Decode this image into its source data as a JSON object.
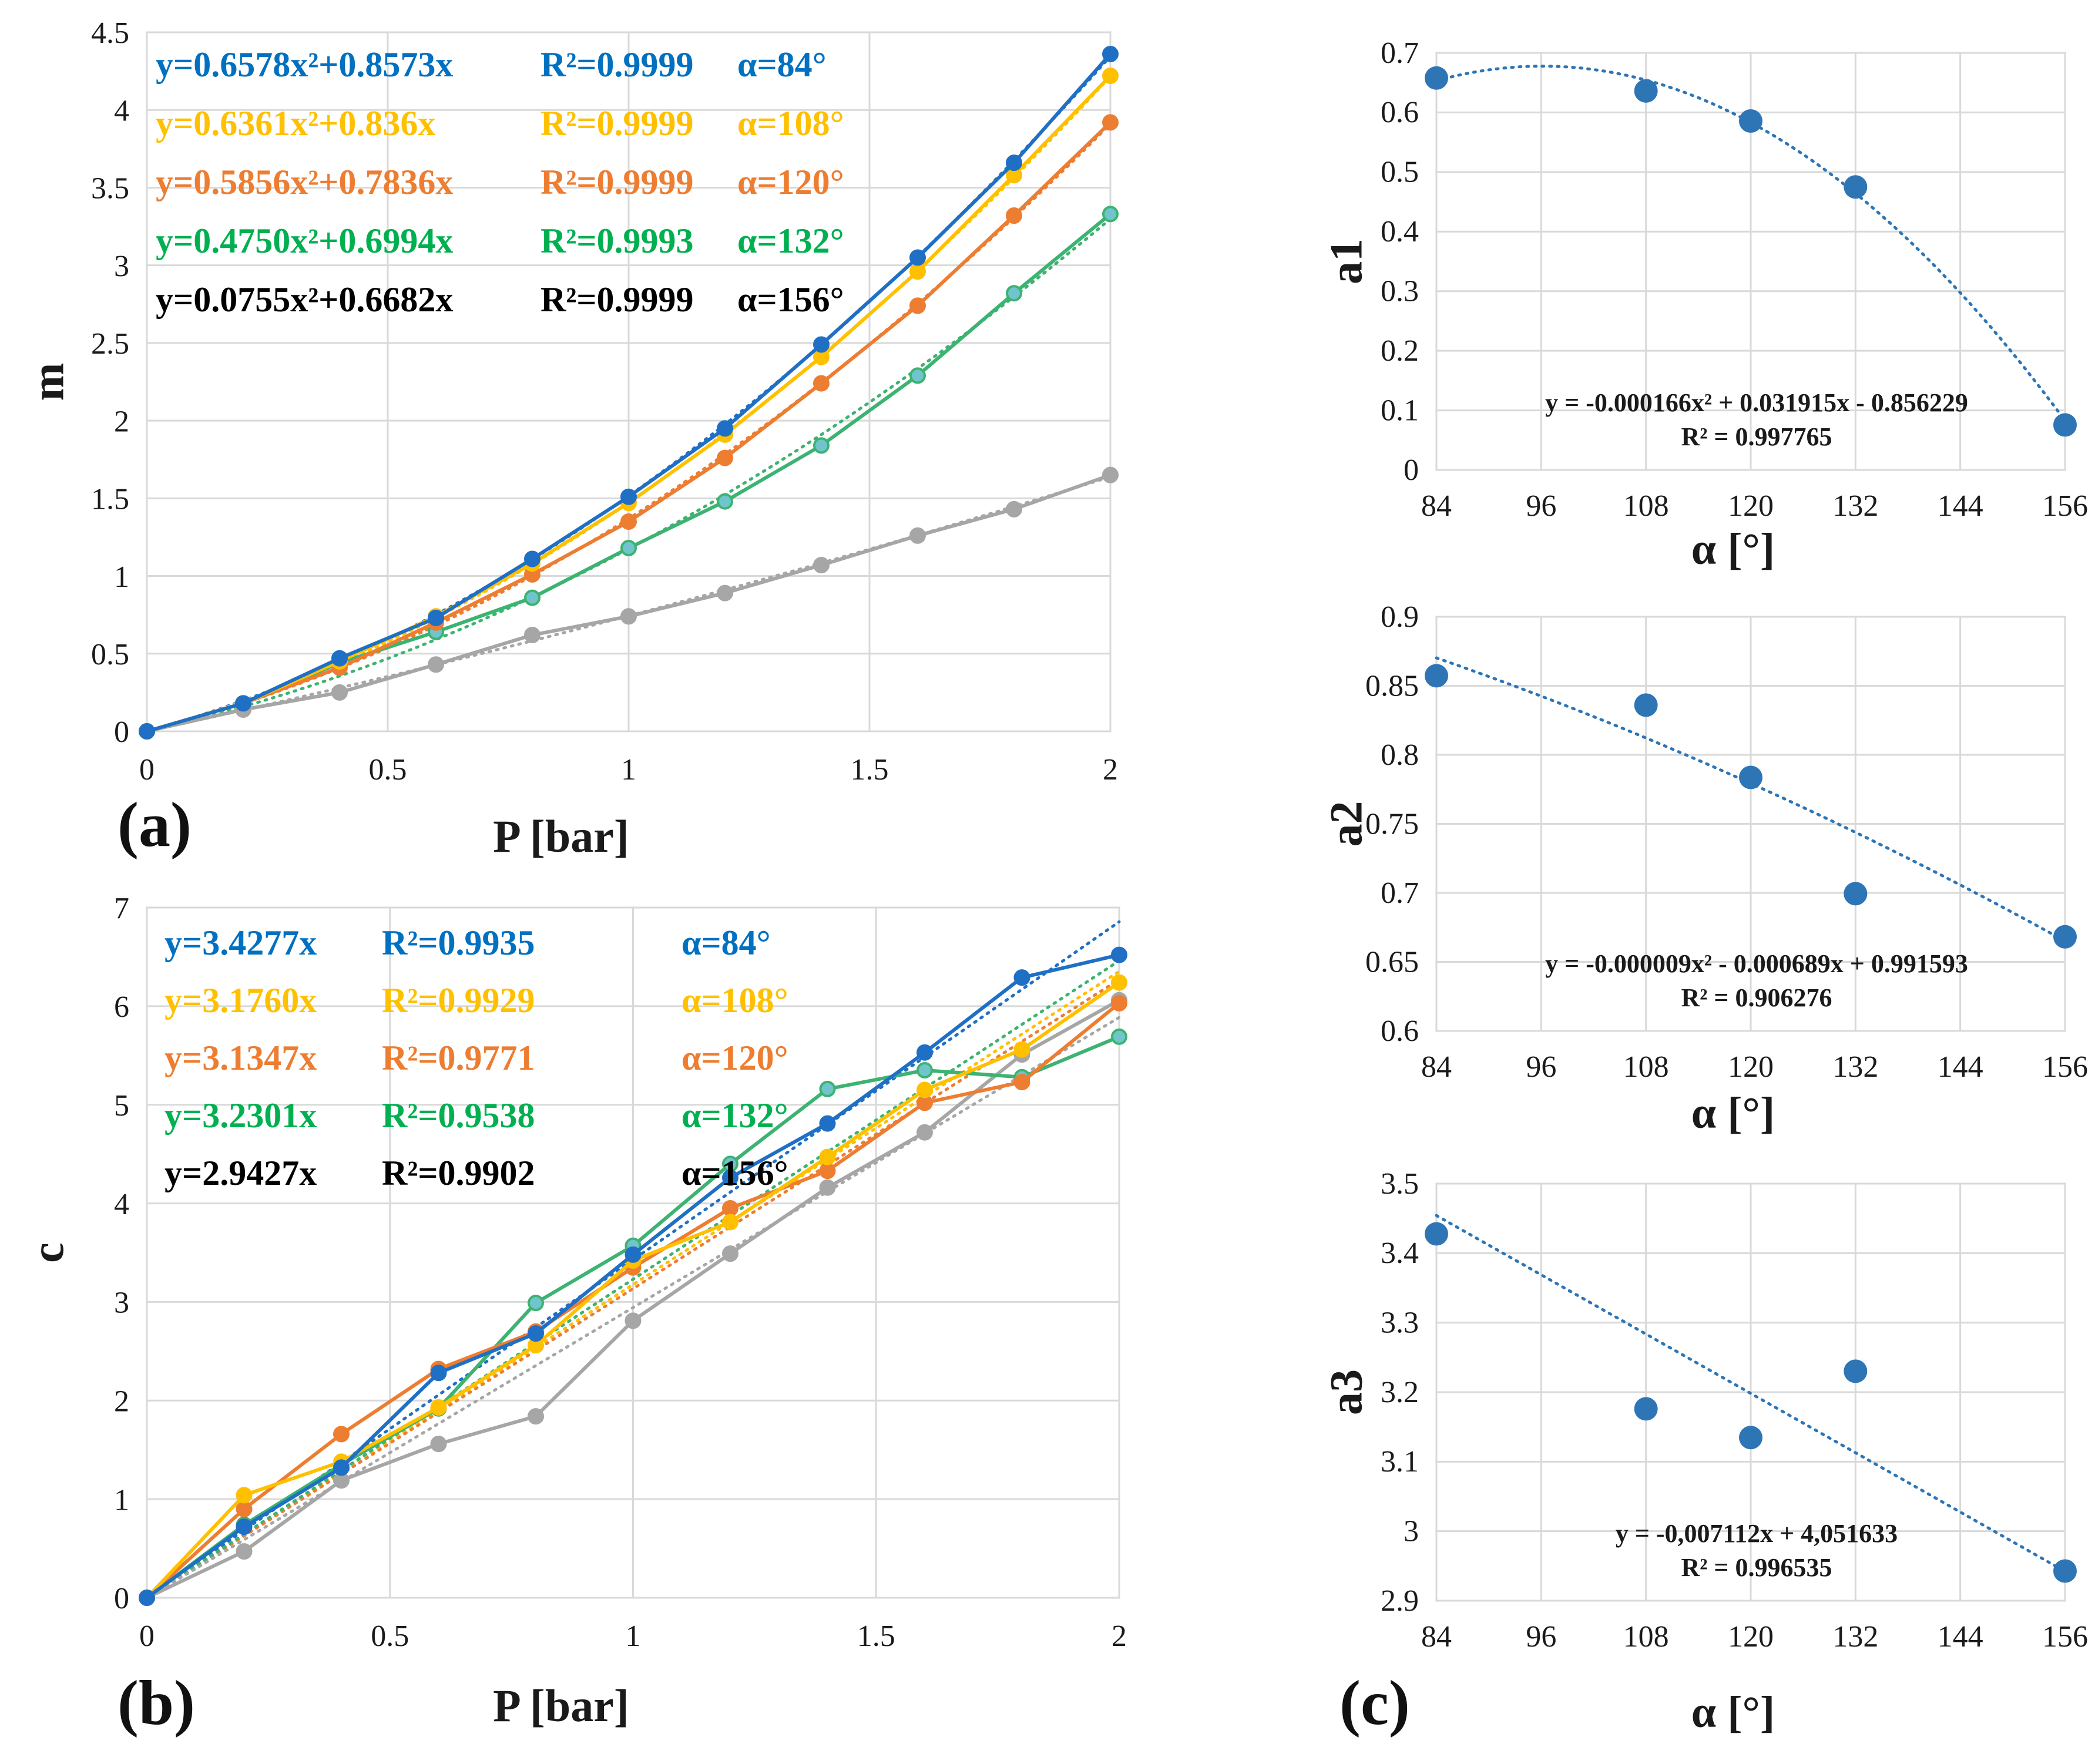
{
  "figure": {
    "labels": {
      "a": "(a)",
      "b": "(b)",
      "c": "(c)"
    }
  },
  "chart_data": [
    {
      "id": "a",
      "type": "line",
      "xlabel": "P [bar]",
      "ylabel": "m",
      "xlim": [
        0,
        2
      ],
      "xticks": [
        0,
        0.5,
        1,
        1.5,
        2
      ],
      "xtick_labels": [
        "0",
        "0.5",
        "1",
        "1.5",
        "2"
      ],
      "ylim": [
        0,
        4.5
      ],
      "yticks": [
        0,
        0.5,
        1,
        1.5,
        2,
        2.5,
        3,
        3.5,
        4,
        4.5
      ],
      "ytick_labels": [
        "0",
        "0.5",
        "1",
        "1.5",
        "2",
        "2.5",
        "3",
        "3.5",
        "4",
        "4.5"
      ],
      "grid": true,
      "x": [
        0,
        0.2,
        0.4,
        0.6,
        0.8,
        1.0,
        1.2,
        1.4,
        1.6,
        1.8,
        2.0
      ],
      "series": [
        {
          "name": "α=84°",
          "color": "#1f6fc5",
          "marker": "#1f6fc5",
          "values": [
            0,
            0.18,
            0.47,
            0.73,
            1.11,
            1.51,
            1.95,
            2.49,
            3.05,
            3.66,
            4.36
          ],
          "fit": [
            0.6578,
            0.8573
          ]
        },
        {
          "name": "α=108°",
          "color": "#ffc000",
          "marker": "#ffc000",
          "values": [
            0,
            0.18,
            0.45,
            0.74,
            1.08,
            1.47,
            1.91,
            2.41,
            2.96,
            3.58,
            4.22
          ],
          "fit": [
            0.6361,
            0.836
          ]
        },
        {
          "name": "α=120°",
          "color": "#ed7d31",
          "marker": "#ed7d31",
          "values": [
            0,
            0.18,
            0.41,
            0.7,
            1.01,
            1.35,
            1.76,
            2.24,
            2.74,
            3.32,
            3.92
          ],
          "fit": [
            0.5856,
            0.7836
          ]
        },
        {
          "name": "α=132°",
          "color": "#3cb371",
          "marker": "#70c4cc",
          "values": [
            0,
            0.18,
            0.44,
            0.64,
            0.86,
            1.18,
            1.48,
            1.84,
            2.29,
            2.82,
            3.33
          ],
          "fit": [
            0.475,
            0.6994
          ]
        },
        {
          "name": "α=156°",
          "color": "#a6a6a6",
          "marker": "#a6a6a6",
          "values": [
            0,
            0.14,
            0.25,
            0.43,
            0.62,
            0.74,
            0.89,
            1.07,
            1.26,
            1.43,
            1.65
          ],
          "fit": [
            0.0755,
            0.6682
          ]
        }
      ],
      "legend_placement": "top-left",
      "legend": [
        {
          "eq": "y=0.6578x²+0.8573x",
          "r2": "R²=0.9999",
          "alpha": "α=84°",
          "color": "#0070c0"
        },
        {
          "eq": "y=0.6361x²+0.836x",
          "r2": "R²=0.9999",
          "alpha": "α=108°",
          "color": "#ffc000"
        },
        {
          "eq": "y=0.5856x²+0.7836x",
          "r2": "R²=0.9999",
          "alpha": "α=120°",
          "color": "#ed7d31"
        },
        {
          "eq": "y=0.4750x²+0.6994x",
          "r2": "R²=0.9993",
          "alpha": "α=132°",
          "color": "#00b050"
        },
        {
          "eq": "y=0.0755x²+0.6682x",
          "r2": "R²=0.9999",
          "alpha": "α=156°",
          "color": "#000000"
        }
      ]
    },
    {
      "id": "b",
      "type": "line",
      "xlabel": "P [bar]",
      "ylabel": "c",
      "xlim": [
        0,
        2
      ],
      "xticks": [
        0,
        0.5,
        1,
        1.5,
        2
      ],
      "xtick_labels": [
        "0",
        "0.5",
        "1",
        "1.5",
        "2"
      ],
      "ylim": [
        0,
        7
      ],
      "yticks": [
        0,
        1,
        2,
        3,
        4,
        5,
        6,
        7
      ],
      "ytick_labels": [
        "0",
        "1",
        "2",
        "3",
        "4",
        "5",
        "6",
        "7"
      ],
      "grid": true,
      "x": [
        0,
        0.2,
        0.4,
        0.6,
        0.8,
        1.0,
        1.2,
        1.4,
        1.6,
        1.8,
        2.0
      ],
      "series": [
        {
          "name": "α=84°",
          "color": "#1f6fc5",
          "marker": "#1f6fc5",
          "values": [
            0,
            0.72,
            1.32,
            2.28,
            2.68,
            3.48,
            4.26,
            4.81,
            5.53,
            6.29,
            6.52
          ],
          "fit": [
            0,
            3.4277
          ]
        },
        {
          "name": "α=108°",
          "color": "#ffc000",
          "marker": "#ffc000",
          "values": [
            0,
            1.04,
            1.38,
            1.93,
            2.56,
            3.42,
            3.81,
            4.47,
            5.15,
            5.56,
            6.24
          ],
          "fit": [
            0,
            3.176
          ]
        },
        {
          "name": "α=120°",
          "color": "#ed7d31",
          "marker": "#ed7d31",
          "values": [
            0,
            0.9,
            1.66,
            2.32,
            2.7,
            3.35,
            3.95,
            4.33,
            5.02,
            5.23,
            6.03
          ],
          "fit": [
            0,
            3.1347
          ]
        },
        {
          "name": "α=132°",
          "color": "#3cb371",
          "marker": "#70c4cc",
          "values": [
            0,
            0.74,
            1.35,
            1.92,
            2.99,
            3.57,
            4.4,
            5.16,
            5.35,
            5.28,
            5.69
          ],
          "fit": [
            0,
            3.2301
          ]
        },
        {
          "name": "α=156°",
          "color": "#a6a6a6",
          "marker": "#a6a6a6",
          "values": [
            0,
            0.47,
            1.19,
            1.56,
            1.84,
            2.81,
            3.49,
            4.16,
            4.72,
            5.51,
            6.06
          ],
          "fit": [
            0,
            2.9427
          ]
        }
      ],
      "legend_placement": "top-left",
      "legend": [
        {
          "eq": "y=3.4277x",
          "r2": "R²=0.9935",
          "alpha": "α=84°",
          "color": "#0070c0"
        },
        {
          "eq": "y=3.1760x",
          "r2": "R²=0.9929",
          "alpha": "α=108°",
          "color": "#ffc000"
        },
        {
          "eq": "y=3.1347x",
          "r2": "R²=0.9771",
          "alpha": "α=120°",
          "color": "#ed7d31"
        },
        {
          "eq": "y=3.2301x",
          "r2": "R²=0.9538",
          "alpha": "α=132°",
          "color": "#00b050"
        },
        {
          "eq": "y=2.9427x",
          "r2": "R²=0.9902",
          "alpha": "α=156°",
          "color": "#000000"
        }
      ]
    },
    {
      "id": "c1",
      "type": "scatter",
      "xlabel": "α [°]",
      "ylabel": "a1",
      "xlim": [
        84,
        156
      ],
      "xticks": [
        84,
        96,
        108,
        120,
        132,
        144,
        156
      ],
      "xtick_labels": [
        "84",
        "96",
        "108",
        "120",
        "132",
        "144",
        "156"
      ],
      "ylim": [
        0,
        0.7
      ],
      "yticks": [
        0,
        0.1,
        0.2,
        0.3,
        0.4,
        0.5,
        0.6,
        0.7
      ],
      "ytick_labels": [
        "0",
        "0.1",
        "0.2",
        "0.3",
        "0.4",
        "0.5",
        "0.6",
        "0.7"
      ],
      "grid": true,
      "x": [
        84,
        108,
        120,
        132,
        156
      ],
      "values": [
        0.6578,
        0.6361,
        0.5856,
        0.475,
        0.0755
      ],
      "trend": {
        "a": -0.000166,
        "b": 0.031915,
        "c": -0.856229
      },
      "trend_label": [
        "y = -0.000166x² + 0.031915x - 0.856229",
        "R² = 0.997765"
      ]
    },
    {
      "id": "c2",
      "type": "scatter",
      "xlabel": "α [°]",
      "ylabel": "a2",
      "xlim": [
        84,
        156
      ],
      "xticks": [
        84,
        96,
        108,
        120,
        132,
        144,
        156
      ],
      "xtick_labels": [
        "84",
        "96",
        "108",
        "120",
        "132",
        "144",
        "156"
      ],
      "ylim": [
        0.6,
        0.9
      ],
      "yticks": [
        0.6,
        0.65,
        0.7,
        0.75,
        0.8,
        0.85,
        0.9
      ],
      "ytick_labels": [
        "0.6",
        "0.65",
        "0.7",
        "0.75",
        "0.8",
        "0.85",
        "0.9"
      ],
      "grid": true,
      "x": [
        84,
        108,
        120,
        132,
        156
      ],
      "values": [
        0.8573,
        0.836,
        0.7836,
        0.6994,
        0.6682
      ],
      "trend": {
        "a": -9e-06,
        "b": -0.000689,
        "c": 0.991593
      },
      "trend_label": [
        "y = -0.000009x² - 0.000689x + 0.991593",
        "R² = 0.906276"
      ]
    },
    {
      "id": "c3",
      "type": "scatter",
      "xlabel": "α [°]",
      "ylabel": "a3",
      "xlim": [
        84,
        156
      ],
      "xticks": [
        84,
        96,
        108,
        120,
        132,
        144,
        156
      ],
      "xtick_labels": [
        "84",
        "96",
        "108",
        "120",
        "132",
        "144",
        "156"
      ],
      "ylim": [
        2.9,
        3.5
      ],
      "yticks": [
        2.9,
        3,
        3.1,
        3.2,
        3.3,
        3.4,
        3.5
      ],
      "ytick_labels": [
        "2.9",
        "3",
        "3.1",
        "3.2",
        "3.3",
        "3.4",
        "3.5"
      ],
      "grid": true,
      "x": [
        84,
        108,
        120,
        132,
        156
      ],
      "values": [
        3.4277,
        3.176,
        3.1347,
        3.2301,
        2.9427
      ],
      "trend": {
        "a": 0,
        "b": -0.007112,
        "c": 4.051633
      },
      "trend_label": [
        "y = -0,007112x + 4,051633",
        "R² = 0.996535"
      ]
    }
  ]
}
